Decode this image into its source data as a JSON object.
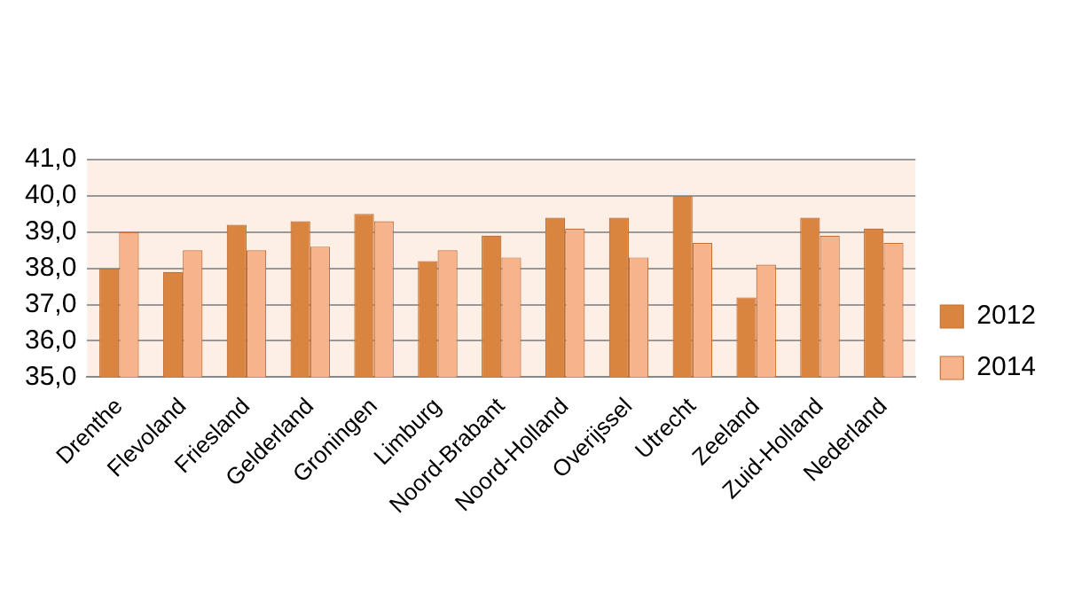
{
  "chart_data": {
    "type": "bar",
    "categories": [
      "Drenthe",
      "Flevoland",
      "Friesland",
      "Gelderland",
      "Groningen",
      "Limburg",
      "Noord-Brabant",
      "Noord-Holland",
      "Overijssel",
      "Utrecht",
      "Zeeland",
      "Zuid-Holland",
      "Nederland"
    ],
    "series": [
      {
        "name": "2012",
        "color": "#d9843f",
        "values": [
          38.0,
          37.9,
          39.2,
          39.3,
          39.5,
          38.2,
          38.9,
          39.4,
          39.4,
          40.0,
          37.2,
          39.4,
          39.1
        ]
      },
      {
        "name": "2014",
        "color": "#f7b48a",
        "values": [
          39.0,
          38.5,
          38.5,
          38.6,
          39.3,
          38.5,
          38.3,
          39.1,
          38.3,
          38.7,
          38.1,
          38.9,
          38.7
        ]
      }
    ],
    "ylim": [
      35,
      41
    ],
    "yticks": [
      {
        "value": 35,
        "label": "35,0"
      },
      {
        "value": 36,
        "label": "36,0"
      },
      {
        "value": 37,
        "label": "37,0"
      },
      {
        "value": 38,
        "label": "38,0"
      },
      {
        "value": 39,
        "label": "39,0"
      },
      {
        "value": 40,
        "label": "40,0"
      },
      {
        "value": 41,
        "label": "41,0"
      }
    ],
    "grid": "y",
    "legend": "right"
  }
}
